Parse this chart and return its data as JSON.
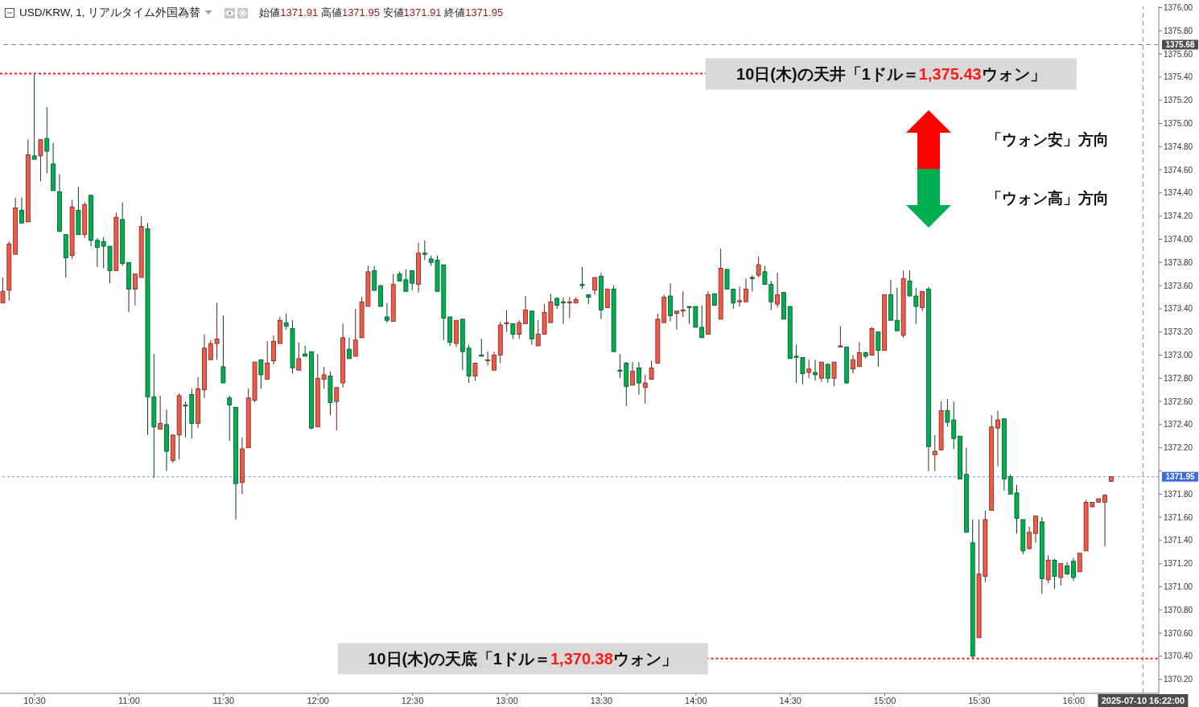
{
  "chart_data": {
    "type": "candlestick",
    "title": "USD/KRW, 1, リアルタイム外国為替",
    "subtitle": "始値1371.91 高値1371.95 安値1371.91 終値1371.95",
    "x": [
      "2025-07-10T10:20",
      "2025-07-10T10:22",
      "2025-07-10T10:24",
      "2025-07-10T10:26",
      "2025-07-10T10:28",
      "2025-07-10T10:30",
      "2025-07-10T10:32",
      "2025-07-10T10:34",
      "2025-07-10T10:36",
      "2025-07-10T10:38",
      "2025-07-10T10:40",
      "2025-07-10T10:42",
      "2025-07-10T10:44",
      "2025-07-10T10:46",
      "2025-07-10T10:48",
      "2025-07-10T10:50",
      "2025-07-10T10:52",
      "2025-07-10T10:54",
      "2025-07-10T10:56",
      "2025-07-10T10:58",
      "2025-07-10T11:00",
      "2025-07-10T11:02",
      "2025-07-10T11:04",
      "2025-07-10T11:06",
      "2025-07-10T11:08",
      "2025-07-10T11:10",
      "2025-07-10T11:12",
      "2025-07-10T11:14",
      "2025-07-10T11:16",
      "2025-07-10T11:18",
      "2025-07-10T11:20",
      "2025-07-10T11:22",
      "2025-07-10T11:24",
      "2025-07-10T11:26",
      "2025-07-10T11:28",
      "2025-07-10T11:30",
      "2025-07-10T11:32",
      "2025-07-10T11:34",
      "2025-07-10T11:36",
      "2025-07-10T11:38",
      "2025-07-10T11:40",
      "2025-07-10T11:42",
      "2025-07-10T11:44",
      "2025-07-10T11:46",
      "2025-07-10T11:48",
      "2025-07-10T11:50",
      "2025-07-10T11:52",
      "2025-07-10T11:54",
      "2025-07-10T11:56",
      "2025-07-10T11:58",
      "2025-07-10T12:00",
      "2025-07-10T12:02",
      "2025-07-10T12:04",
      "2025-07-10T12:06",
      "2025-07-10T12:08",
      "2025-07-10T12:10",
      "2025-07-10T12:12",
      "2025-07-10T12:14",
      "2025-07-10T12:16",
      "2025-07-10T12:18",
      "2025-07-10T12:20",
      "2025-07-10T12:22",
      "2025-07-10T12:24",
      "2025-07-10T12:26",
      "2025-07-10T12:28",
      "2025-07-10T12:30",
      "2025-07-10T12:32",
      "2025-07-10T12:34",
      "2025-07-10T12:36",
      "2025-07-10T12:38",
      "2025-07-10T12:40",
      "2025-07-10T12:42",
      "2025-07-10T12:44",
      "2025-07-10T12:46",
      "2025-07-10T12:48",
      "2025-07-10T12:50",
      "2025-07-10T12:52",
      "2025-07-10T12:54",
      "2025-07-10T12:56",
      "2025-07-10T12:58",
      "2025-07-10T13:00",
      "2025-07-10T13:02",
      "2025-07-10T13:04",
      "2025-07-10T13:06",
      "2025-07-10T13:08",
      "2025-07-10T13:10",
      "2025-07-10T13:12",
      "2025-07-10T13:14",
      "2025-07-10T13:16",
      "2025-07-10T13:18",
      "2025-07-10T13:20",
      "2025-07-10T13:22",
      "2025-07-10T13:24",
      "2025-07-10T13:26",
      "2025-07-10T13:28",
      "2025-07-10T13:30",
      "2025-07-10T13:32",
      "2025-07-10T13:34",
      "2025-07-10T13:36",
      "2025-07-10T13:38",
      "2025-07-10T13:40",
      "2025-07-10T13:42",
      "2025-07-10T13:44",
      "2025-07-10T13:46",
      "2025-07-10T13:48",
      "2025-07-10T13:50",
      "2025-07-10T13:52",
      "2025-07-10T13:54",
      "2025-07-10T13:56",
      "2025-07-10T13:58",
      "2025-07-10T14:00",
      "2025-07-10T14:02",
      "2025-07-10T14:04",
      "2025-07-10T14:06",
      "2025-07-10T14:08",
      "2025-07-10T14:10",
      "2025-07-10T14:12",
      "2025-07-10T14:14",
      "2025-07-10T14:16",
      "2025-07-10T14:18",
      "2025-07-10T14:20",
      "2025-07-10T14:22",
      "2025-07-10T14:24",
      "2025-07-10T14:26",
      "2025-07-10T14:28",
      "2025-07-10T14:30",
      "2025-07-10T14:32",
      "2025-07-10T14:34",
      "2025-07-10T14:36",
      "2025-07-10T14:38",
      "2025-07-10T14:40",
      "2025-07-10T14:42",
      "2025-07-10T14:44",
      "2025-07-10T14:46",
      "2025-07-10T14:48",
      "2025-07-10T14:50",
      "2025-07-10T14:52",
      "2025-07-10T14:54",
      "2025-07-10T14:56",
      "2025-07-10T14:58",
      "2025-07-10T15:00",
      "2025-07-10T15:02",
      "2025-07-10T15:04",
      "2025-07-10T15:06",
      "2025-07-10T15:08",
      "2025-07-10T15:10",
      "2025-07-10T15:12",
      "2025-07-10T15:14",
      "2025-07-10T15:16",
      "2025-07-10T15:18",
      "2025-07-10T15:20",
      "2025-07-10T15:22",
      "2025-07-10T15:24",
      "2025-07-10T15:26",
      "2025-07-10T15:28",
      "2025-07-10T15:30",
      "2025-07-10T15:32",
      "2025-07-10T15:34",
      "2025-07-10T15:36",
      "2025-07-10T15:38",
      "2025-07-10T15:40",
      "2025-07-10T15:42",
      "2025-07-10T15:44",
      "2025-07-10T15:46",
      "2025-07-10T15:48",
      "2025-07-10T15:50",
      "2025-07-10T15:52",
      "2025-07-10T15:54",
      "2025-07-10T15:56",
      "2025-07-10T15:58",
      "2025-07-10T16:00",
      "2025-07-10T16:02",
      "2025-07-10T16:04",
      "2025-07-10T16:06",
      "2025-07-10T16:08",
      "2025-07-10T16:10",
      "2025-07-10T16:12"
    ],
    "ohlc": [
      [
        1373.45,
        1373.67,
        1373.45,
        1373.55
      ],
      [
        1373.56,
        1373.98,
        1373.47,
        1373.96
      ],
      [
        1373.87,
        1374.36,
        1373.87,
        1374.27
      ],
      [
        1374.25,
        1374.36,
        1374.14,
        1374.14
      ],
      [
        1374.15,
        1374.86,
        1374.15,
        1374.73
      ],
      [
        1374.72,
        1375.43,
        1374.69,
        1374.69
      ],
      [
        1374.72,
        1374.86,
        1374.5,
        1374.86
      ],
      [
        1374.87,
        1375.14,
        1374.57,
        1374.76
      ],
      [
        1374.65,
        1374.83,
        1374.42,
        1374.42
      ],
      [
        1374.41,
        1374.56,
        1374.06,
        1374.07
      ],
      [
        1374.04,
        1374.04,
        1373.67,
        1373.84
      ],
      [
        1373.86,
        1374.34,
        1373.83,
        1374.28
      ],
      [
        1374.25,
        1374.45,
        1374.04,
        1374.04
      ],
      [
        1374.04,
        1374.32,
        1374.01,
        1374.3
      ],
      [
        1374.38,
        1374.38,
        1373.94,
        1373.99
      ],
      [
        1373.99,
        1374.01,
        1373.76,
        1373.93
      ],
      [
        1373.98,
        1374.02,
        1373.75,
        1373.94
      ],
      [
        1373.94,
        1373.94,
        1373.62,
        1373.73
      ],
      [
        1373.73,
        1374.23,
        1373.73,
        1374.19
      ],
      [
        1374.17,
        1374.32,
        1373.77,
        1373.79
      ],
      [
        1373.8,
        1373.8,
        1373.37,
        1373.57
      ],
      [
        1373.57,
        1373.7,
        1373.43,
        1373.7
      ],
      [
        1373.67,
        1374.2,
        1373.67,
        1374.11
      ],
      [
        1374.09,
        1374.14,
        1372.31,
        1372.64
      ],
      [
        1372.64,
        1373.01,
        1371.94,
        1372.38
      ],
      [
        1372.36,
        1372.65,
        1372.36,
        1372.41
      ],
      [
        1372.4,
        1372.53,
        1372.0,
        1372.17
      ],
      [
        1372.09,
        1372.31,
        1372.07,
        1372.31
      ],
      [
        1372.31,
        1372.67,
        1372.1,
        1372.65
      ],
      [
        1372.57,
        1372.6,
        1372.29,
        1372.56
      ],
      [
        1372.66,
        1372.71,
        1372.28,
        1372.41
      ],
      [
        1372.41,
        1372.81,
        1372.37,
        1372.71
      ],
      [
        1372.7,
        1373.18,
        1372.63,
        1373.06
      ],
      [
        1372.96,
        1373.13,
        1372.96,
        1373.1
      ],
      [
        1373.1,
        1373.45,
        1372.96,
        1373.14
      ],
      [
        1372.9,
        1373.34,
        1372.76,
        1372.76
      ],
      [
        1372.63,
        1372.65,
        1372.26,
        1372.57
      ],
      [
        1372.55,
        1372.55,
        1371.58,
        1371.89
      ],
      [
        1371.9,
        1372.29,
        1371.8,
        1372.19
      ],
      [
        1372.2,
        1372.71,
        1372.2,
        1372.63
      ],
      [
        1372.61,
        1372.94,
        1372.59,
        1372.94
      ],
      [
        1372.96,
        1372.96,
        1372.71,
        1372.83
      ],
      [
        1372.79,
        1373.12,
        1372.79,
        1372.93
      ],
      [
        1372.95,
        1373.17,
        1372.92,
        1373.12
      ],
      [
        1373.1,
        1373.33,
        1373.1,
        1373.3
      ],
      [
        1373.28,
        1373.36,
        1373.22,
        1373.25
      ],
      [
        1373.23,
        1373.3,
        1372.84,
        1372.89
      ],
      [
        1372.87,
        1373.11,
        1372.87,
        1372.97
      ],
      [
        1373.01,
        1373.08,
        1372.99,
        1372.99
      ],
      [
        1373.03,
        1373.03,
        1372.36,
        1372.37
      ],
      [
        1372.38,
        1373.01,
        1372.38,
        1372.8
      ],
      [
        1372.79,
        1372.9,
        1372.71,
        1372.83
      ],
      [
        1372.82,
        1372.86,
        1372.48,
        1372.59
      ],
      [
        1372.6,
        1372.72,
        1372.35,
        1372.72
      ],
      [
        1372.76,
        1373.27,
        1372.72,
        1373.15
      ],
      [
        1373.05,
        1373.15,
        1372.97,
        1372.97
      ],
      [
        1372.99,
        1373.4,
        1372.99,
        1373.13
      ],
      [
        1373.15,
        1373.5,
        1373.15,
        1373.46
      ],
      [
        1373.42,
        1373.77,
        1373.42,
        1373.72
      ],
      [
        1373.73,
        1373.77,
        1373.55,
        1373.56
      ],
      [
        1373.6,
        1373.6,
        1373.42,
        1373.42
      ],
      [
        1373.33,
        1373.45,
        1373.28,
        1373.3
      ],
      [
        1373.29,
        1373.7,
        1373.29,
        1373.61
      ],
      [
        1373.7,
        1373.72,
        1373.64,
        1373.64
      ],
      [
        1373.65,
        1373.74,
        1373.55,
        1373.55
      ],
      [
        1373.73,
        1373.73,
        1373.56,
        1373.62
      ],
      [
        1373.61,
        1373.97,
        1373.54,
        1373.88
      ],
      [
        1373.88,
        1373.99,
        1373.82,
        1373.87
      ],
      [
        1373.83,
        1373.86,
        1373.77,
        1373.8
      ],
      [
        1373.82,
        1373.86,
        1373.55,
        1373.55
      ],
      [
        1373.78,
        1373.78,
        1373.13,
        1373.32
      ],
      [
        1373.33,
        1373.33,
        1373.08,
        1373.11
      ],
      [
        1373.1,
        1373.3,
        1373.07,
        1373.3
      ],
      [
        1373.31,
        1373.31,
        1372.87,
        1373.03
      ],
      [
        1373.06,
        1373.09,
        1372.76,
        1372.82
      ],
      [
        1372.82,
        1372.93,
        1372.78,
        1372.93
      ],
      [
        1373.0,
        1373.14,
        1372.99,
        1372.99
      ],
      [
        1372.95,
        1373.03,
        1372.91,
        1372.96
      ],
      [
        1372.87,
        1373.03,
        1372.87,
        1373.0
      ],
      [
        1373.0,
        1373.29,
        1372.93,
        1373.26
      ],
      [
        1373.27,
        1373.39,
        1373.2,
        1373.28
      ],
      [
        1373.27,
        1373.27,
        1373.14,
        1373.18
      ],
      [
        1373.18,
        1373.3,
        1373.14,
        1373.28
      ],
      [
        1373.27,
        1373.51,
        1373.27,
        1373.39
      ],
      [
        1373.38,
        1373.38,
        1373.09,
        1373.14
      ],
      [
        1373.08,
        1373.3,
        1373.08,
        1373.18
      ],
      [
        1373.18,
        1373.44,
        1373.18,
        1373.37
      ],
      [
        1373.28,
        1373.53,
        1373.28,
        1373.46
      ],
      [
        1373.49,
        1373.5,
        1373.4,
        1373.43
      ],
      [
        1373.46,
        1373.5,
        1373.27,
        1373.45
      ],
      [
        1373.45,
        1373.5,
        1373.32,
        1373.46
      ],
      [
        1373.45,
        1373.5,
        1373.45,
        1373.48
      ],
      [
        1373.61,
        1373.76,
        1373.57,
        1373.6
      ],
      [
        1373.52,
        1373.52,
        1373.44,
        1373.5
      ],
      [
        1373.56,
        1373.67,
        1373.52,
        1373.67
      ],
      [
        1373.68,
        1373.71,
        1373.31,
        1373.39
      ],
      [
        1373.41,
        1373.57,
        1373.41,
        1373.57
      ],
      [
        1373.57,
        1373.6,
        1373.03,
        1373.03
      ],
      [
        1372.87,
        1373.01,
        1372.8,
        1372.86
      ],
      [
        1372.93,
        1372.94,
        1372.56,
        1372.73
      ],
      [
        1372.74,
        1372.94,
        1372.74,
        1372.86
      ],
      [
        1372.89,
        1372.94,
        1372.66,
        1372.76
      ],
      [
        1372.72,
        1372.83,
        1372.58,
        1372.76
      ],
      [
        1372.79,
        1372.95,
        1372.79,
        1372.89
      ],
      [
        1372.93,
        1373.36,
        1372.93,
        1373.31
      ],
      [
        1373.28,
        1373.52,
        1373.28,
        1373.5
      ],
      [
        1373.51,
        1373.62,
        1373.29,
        1373.34
      ],
      [
        1373.36,
        1373.38,
        1373.22,
        1373.38
      ],
      [
        1373.38,
        1373.55,
        1373.33,
        1373.39
      ],
      [
        1373.42,
        1373.42,
        1373.27,
        1373.41
      ],
      [
        1373.42,
        1373.42,
        1373.24,
        1373.24
      ],
      [
        1373.24,
        1373.43,
        1373.15,
        1373.15
      ],
      [
        1373.18,
        1373.55,
        1373.18,
        1373.52
      ],
      [
        1373.53,
        1373.53,
        1373.43,
        1373.43
      ],
      [
        1373.31,
        1373.92,
        1373.31,
        1373.75
      ],
      [
        1373.74,
        1373.74,
        1373.57,
        1373.57
      ],
      [
        1373.57,
        1373.57,
        1373.4,
        1373.45
      ],
      [
        1373.46,
        1373.59,
        1373.42,
        1373.47
      ],
      [
        1373.46,
        1373.66,
        1373.46,
        1373.57
      ],
      [
        1373.67,
        1373.69,
        1373.55,
        1373.66
      ],
      [
        1373.69,
        1373.85,
        1373.67,
        1373.78
      ],
      [
        1373.72,
        1373.77,
        1373.61,
        1373.61
      ],
      [
        1373.61,
        1373.64,
        1373.39,
        1373.46
      ],
      [
        1373.44,
        1373.71,
        1373.41,
        1373.52
      ],
      [
        1373.54,
        1373.54,
        1373.31,
        1373.31
      ],
      [
        1373.42,
        1373.42,
        1372.97,
        1372.97
      ],
      [
        1372.99,
        1373.09,
        1372.76,
        1372.98
      ],
      [
        1372.98,
        1372.98,
        1372.75,
        1372.84
      ],
      [
        1372.85,
        1372.96,
        1372.8,
        1372.88
      ],
      [
        1372.85,
        1372.96,
        1372.78,
        1372.83
      ],
      [
        1372.8,
        1372.94,
        1372.77,
        1372.94
      ],
      [
        1372.92,
        1372.93,
        1372.76,
        1372.8
      ],
      [
        1372.8,
        1372.94,
        1372.73,
        1372.94
      ],
      [
        1373.07,
        1373.25,
        1373.07,
        1373.08
      ],
      [
        1373.07,
        1373.07,
        1372.75,
        1372.76
      ],
      [
        1372.88,
        1373.0,
        1372.84,
        1372.96
      ],
      [
        1372.9,
        1373.11,
        1372.9,
        1373.02
      ],
      [
        1373.02,
        1373.03,
        1372.97,
        1372.99
      ],
      [
        1373.0,
        1373.24,
        1373.0,
        1373.23
      ],
      [
        1373.2,
        1373.2,
        1372.9,
        1373.04
      ],
      [
        1373.04,
        1373.52,
        1373.04,
        1373.52
      ],
      [
        1373.52,
        1373.65,
        1373.3,
        1373.3
      ],
      [
        1373.3,
        1373.58,
        1373.21,
        1373.21
      ],
      [
        1373.17,
        1373.73,
        1373.15,
        1373.66
      ],
      [
        1373.64,
        1373.73,
        1373.51,
        1373.51
      ],
      [
        1373.51,
        1373.58,
        1373.27,
        1373.42
      ],
      [
        1373.41,
        1373.55,
        1373.38,
        1373.55
      ],
      [
        1373.57,
        1373.59,
        1372.0,
        1372.21
      ],
      [
        1372.14,
        1372.31,
        1372.0,
        1372.17
      ],
      [
        1372.18,
        1372.6,
        1372.18,
        1372.52
      ],
      [
        1372.52,
        1372.62,
        1372.38,
        1372.42
      ],
      [
        1372.44,
        1372.6,
        1372.19,
        1372.28
      ],
      [
        1372.3,
        1372.3,
        1371.93,
        1371.93
      ],
      [
        1371.97,
        1372.2,
        1371.47,
        1371.47
      ],
      [
        1371.38,
        1371.58,
        1370.38,
        1370.4
      ],
      [
        1370.56,
        1371.58,
        1370.56,
        1371.11
      ],
      [
        1371.09,
        1371.66,
        1371.04,
        1371.58
      ],
      [
        1371.66,
        1372.48,
        1371.66,
        1372.38
      ],
      [
        1372.37,
        1372.52,
        1372.04,
        1372.44
      ],
      [
        1372.45,
        1372.45,
        1371.83,
        1371.93
      ],
      [
        1371.95,
        1371.97,
        1371.8,
        1371.8
      ],
      [
        1371.81,
        1371.88,
        1371.46,
        1371.59
      ],
      [
        1371.58,
        1371.58,
        1371.28,
        1371.31
      ],
      [
        1371.33,
        1371.52,
        1371.32,
        1371.47
      ],
      [
        1371.46,
        1371.61,
        1371.38,
        1371.61
      ],
      [
        1371.56,
        1371.6,
        1370.94,
        1371.07
      ],
      [
        1371.06,
        1371.27,
        1371.03,
        1371.23
      ],
      [
        1371.23,
        1371.24,
        1370.98,
        1371.09
      ],
      [
        1371.08,
        1371.2,
        1371.01,
        1371.2
      ],
      [
        1371.18,
        1371.21,
        1371.1,
        1371.11
      ],
      [
        1371.22,
        1371.25,
        1371.05,
        1371.08
      ],
      [
        1371.13,
        1371.29,
        1371.13,
        1371.29
      ],
      [
        1371.31,
        1371.75,
        1371.31,
        1371.73
      ],
      [
        1371.69,
        1371.73,
        1371.69,
        1371.73
      ],
      [
        1371.73,
        1371.76,
        1371.73,
        1371.76
      ],
      [
        1371.73,
        1371.8,
        1371.35,
        1371.79
      ],
      [
        1371.91,
        1371.95,
        1371.91,
        1371.95
      ]
    ],
    "colors": [
      "#f25a48",
      "#f25a48",
      "#f25a48",
      "#00b050",
      "#f25a48",
      "#00b050",
      "#f25a48",
      "#00b050",
      "#00b050",
      "#00b050",
      "#00b050",
      "#f25a48",
      "#00b050",
      "#f25a48",
      "#00b050",
      "#00b050",
      "#00b050",
      "#00b050",
      "#f25a48",
      "#00b050",
      "#00b050",
      "#f25a48",
      "#f25a48",
      "#00b050",
      "#00b050",
      "#f25a48",
      "#00b050",
      "#f25a48",
      "#f25a48",
      "#00b050",
      "#00b050",
      "#f25a48",
      "#f25a48",
      "#f25a48",
      "#f25a48",
      "#00b050",
      "#00b050",
      "#00b050",
      "#f25a48",
      "#f25a48",
      "#f25a48",
      "#00b050",
      "#f25a48",
      "#f25a48",
      "#f25a48",
      "#00b050",
      "#00b050",
      "#f25a48",
      "#00b050",
      "#00b050",
      "#f25a48",
      "#f25a48",
      "#00b050",
      "#f25a48",
      "#f25a48",
      "#00b050",
      "#f25a48",
      "#f25a48",
      "#f25a48",
      "#00b050",
      "#00b050",
      "#00b050",
      "#f25a48",
      "#00b050",
      "#00b050",
      "#00b050",
      "#f25a48",
      "#00b050",
      "#00b050",
      "#00b050",
      "#00b050",
      "#00b050",
      "#f25a48",
      "#00b050",
      "#00b050",
      "#f25a48",
      "#00b050",
      "#f25a48",
      "#f25a48",
      "#f25a48",
      "#f25a48",
      "#00b050",
      "#f25a48",
      "#f25a48",
      "#00b050",
      "#f25a48",
      "#f25a48",
      "#f25a48",
      "#00b050",
      "#00b050",
      "#f25a48",
      "#f25a48",
      "#00b050",
      "#00b050",
      "#f25a48",
      "#00b050",
      "#f25a48",
      "#00b050",
      "#00b050",
      "#00b050",
      "#f25a48",
      "#00b050",
      "#f25a48",
      "#f25a48",
      "#f25a48",
      "#f25a48",
      "#00b050",
      "#f25a48",
      "#f25a48",
      "#00b050",
      "#00b050",
      "#00b050",
      "#f25a48",
      "#00b050",
      "#f25a48",
      "#00b050",
      "#00b050",
      "#f25a48",
      "#f25a48",
      "#00b050",
      "#f25a48",
      "#00b050",
      "#00b050",
      "#f25a48",
      "#00b050",
      "#00b050",
      "#00b050",
      "#00b050",
      "#f25a48",
      "#00b050",
      "#f25a48",
      "#00b050",
      "#f25a48",
      "#f25a48",
      "#00b050",
      "#f25a48",
      "#f25a48",
      "#00b050",
      "#f25a48",
      "#00b050",
      "#f25a48",
      "#00b050",
      "#00b050",
      "#f25a48",
      "#00b050",
      "#00b050",
      "#f25a48",
      "#00b050",
      "#f25a48",
      "#f25a48",
      "#00b050",
      "#00b050",
      "#00b050",
      "#00b050",
      "#00b050",
      "#f25a48",
      "#f25a48",
      "#f25a48",
      "#f25a48",
      "#00b050",
      "#00b050",
      "#00b050",
      "#00b050",
      "#f25a48",
      "#f25a48",
      "#00b050",
      "#f25a48",
      "#00b050",
      "#f25a48",
      "#00b050",
      "#00b050",
      "#f25a48",
      "#f25a48",
      "#f25a48",
      "#f25a48",
      "#f25a48",
      "#f25a48"
    ],
    "xlim": [
      "2025-07-10T10:19",
      "2025-07-10T16:27"
    ],
    "xticks": [
      {
        "value": "2025-07-10T10:30",
        "label": "10:30"
      },
      {
        "value": "2025-07-10T11:00",
        "label": "11:00"
      },
      {
        "value": "2025-07-10T11:30",
        "label": "11:30"
      },
      {
        "value": "2025-07-10T12:00",
        "label": "12:00"
      },
      {
        "value": "2025-07-10T12:30",
        "label": "12:30"
      },
      {
        "value": "2025-07-10T13:00",
        "label": "13:00"
      },
      {
        "value": "2025-07-10T13:30",
        "label": "13:30"
      },
      {
        "value": "2025-07-10T14:00",
        "label": "14:00"
      },
      {
        "value": "2025-07-10T14:30",
        "label": "14:30"
      },
      {
        "value": "2025-07-10T15:00",
        "label": "15:00"
      },
      {
        "value": "2025-07-10T15:30",
        "label": "15:30"
      },
      {
        "value": "2025-07-10T16:00",
        "label": "16:00"
      }
    ],
    "ylim": [
      1370.08,
      1376.01
    ],
    "yticks": [
      {
        "value": 1370.2,
        "label": "1370.20"
      },
      {
        "value": 1370.4,
        "label": "1370.40"
      },
      {
        "value": 1370.6,
        "label": "1370.60"
      },
      {
        "value": 1370.8,
        "label": "1370.80"
      },
      {
        "value": 1371,
        "label": "1371.00"
      },
      {
        "value": 1371.2,
        "label": "1371.20"
      },
      {
        "value": 1371.4,
        "label": "1371.40"
      },
      {
        "value": 1371.6,
        "label": "1371.60"
      },
      {
        "value": 1371.8,
        "label": "1371.80"
      },
      {
        "value": 1372,
        "label": null
      },
      {
        "value": 1372.2,
        "label": "1372.20"
      },
      {
        "value": 1372.4,
        "label": "1372.40"
      },
      {
        "value": 1372.6,
        "label": "1372.60"
      },
      {
        "value": 1372.8,
        "label": "1372.80"
      },
      {
        "value": 1373,
        "label": "1373.00"
      },
      {
        "value": 1373.2,
        "label": "1373.20"
      },
      {
        "value": 1373.4,
        "label": "1373.40"
      },
      {
        "value": 1373.6,
        "label": "1373.60"
      },
      {
        "value": 1373.8,
        "label": "1373.80"
      },
      {
        "value": 1374,
        "label": "1374.00"
      },
      {
        "value": 1374.2,
        "label": "1374.20"
      },
      {
        "value": 1374.4,
        "label": "1374.40"
      },
      {
        "value": 1374.6,
        "label": "1374.60"
      },
      {
        "value": 1374.8,
        "label": "1374.80"
      },
      {
        "value": 1375,
        "label": "1375.00"
      },
      {
        "value": 1375.2,
        "label": "1375.20"
      },
      {
        "value": 1375.4,
        "label": "1375.40"
      },
      {
        "value": 1375.6,
        "label": "1375.60"
      },
      {
        "value": 1375.8,
        "label": "1375.80"
      },
      {
        "value": 1376,
        "label": "1376.00"
      }
    ],
    "ref_lines": [
      {
        "axis": "y",
        "value": 1375.43,
        "color": "#ff1a1a",
        "line_style": "dotted"
      },
      {
        "axis": "y",
        "value": 1370.38,
        "color": "#ff1a1a",
        "line_style": "dotted"
      },
      {
        "axis": "y",
        "value": 1375.68,
        "label": "1375.68",
        "color": "#4d4d4d",
        "line_style": "dashed"
      },
      {
        "axis": "y",
        "value": 1371.95,
        "label": "1371.95",
        "color": "#3d6be0",
        "line_style": "dotted"
      },
      {
        "axis": "x",
        "value": "2025-07-10T16:22",
        "label": "2025-07-10 16:22:00",
        "color": "#4d4d4d",
        "line_style": "dashed"
      }
    ],
    "annotations": [
      {
        "text": "10日(木)の天井「1ドル＝1,375.43ウォン」",
        "x": "2025-07-10T15:02",
        "y": 1375.43
      },
      {
        "text": "10日(木)の天底「1ドル＝1,370.38ウォン」",
        "x": "2025-07-10T13:05",
        "y": 1370.38
      },
      "「ウォン安」方向",
      "「ウォン高」方向"
    ]
  }
}
